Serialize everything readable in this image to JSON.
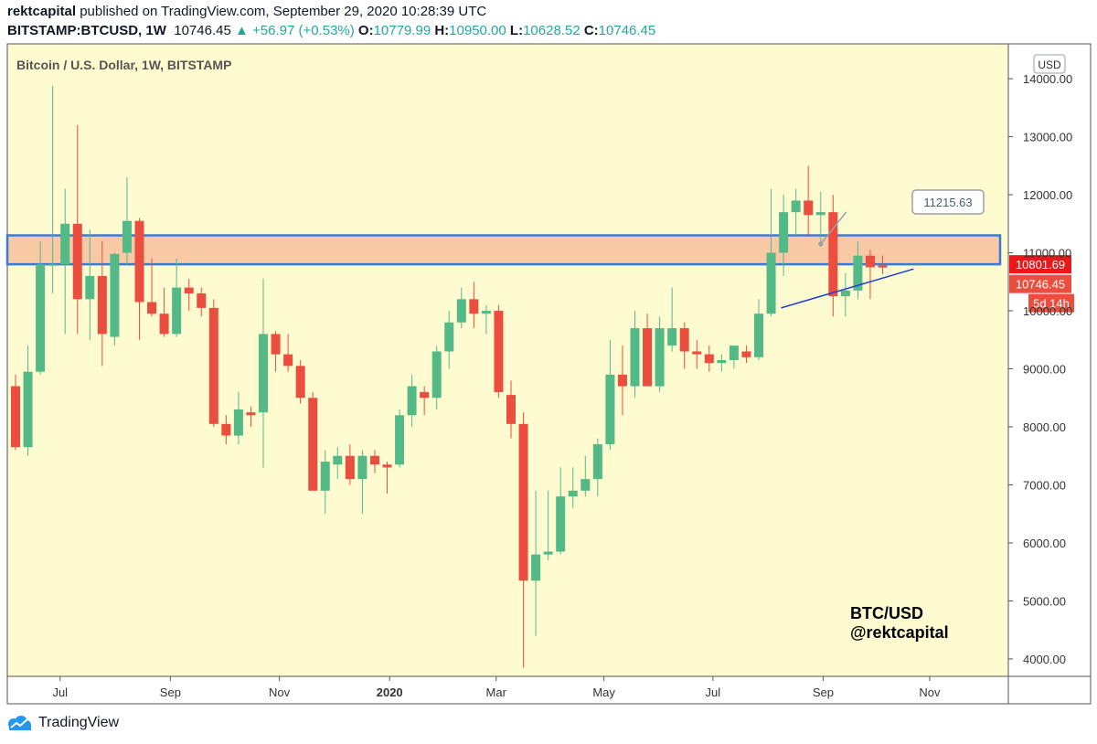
{
  "header": {
    "user": "rektcapital",
    "published_text": "published on TradingView.com, September 29, 2020 10:28:39 UTC",
    "symbol": "BITSTAMP:BTCUSD, 1W",
    "last": "10746.45",
    "change": "▲ +56.97 (+0.53%)",
    "open_label": "O:",
    "open": "10779.99",
    "high_label": "H:",
    "high": "10950.00",
    "low_label": "L:",
    "low": "10628.52",
    "close_label": "C:",
    "close": "10746.45"
  },
  "chart_title": "Bitcoin / U.S. Dollar, 1W, BITSTAMP",
  "currency_button": "USD",
  "annotation_callout": "11215.63",
  "watermark": {
    "line1": "BTC/USD",
    "line2": "@rektcapital"
  },
  "price_badges": {
    "resistance": "10801.69",
    "last": "10746.45",
    "countdown": "5d 14h"
  },
  "footer": {
    "brand": "TradingView"
  },
  "colors": {
    "bull": "#53b987",
    "bear": "#eb4d3e",
    "background": "#fffbd0",
    "zone": "#f9c9a6",
    "zone_border": "#3a7bd5",
    "trendline": "#1f3fd1"
  },
  "chart_data": {
    "type": "candlestick",
    "title": "Bitcoin / U.S. Dollar, 1W, BITSTAMP",
    "interval": "1W",
    "ylim": [
      3700,
      14600
    ],
    "y_ticks": [
      4000,
      5000,
      6000,
      7000,
      8000,
      9000,
      10000,
      11000,
      12000,
      13000,
      14000
    ],
    "y_tick_labels": [
      "4000.00",
      "5000.00",
      "6000.00",
      "7000.00",
      "8000.00",
      "9000.00",
      "10000.00",
      "11000.00",
      "12000.00",
      "13000.00",
      "14000.00"
    ],
    "x_tick_labels": [
      {
        "label": "Jul",
        "index": 3.6
      },
      {
        "label": "Sep",
        "index": 12.5
      },
      {
        "label": "Nov",
        "index": 21.3
      },
      {
        "label": "2020",
        "index": 30.2
      },
      {
        "label": "Mar",
        "index": 38.8
      },
      {
        "label": "May",
        "index": 47.5
      },
      {
        "label": "Jul",
        "index": 56.3
      },
      {
        "label": "Sep",
        "index": 65.2
      },
      {
        "label": "Nov",
        "index": 73.8
      }
    ],
    "resistance_zone": {
      "low": 10801.69,
      "high": 11300,
      "label": "10801.69"
    },
    "callout_value": 11215.63,
    "trendline": {
      "start": {
        "index": 61.8,
        "value": 10050
      },
      "end": {
        "index": 72.5,
        "value": 10720
      }
    },
    "candles": [
      {
        "o": 8700,
        "h": 8900,
        "l": 7600,
        "c": 7650
      },
      {
        "o": 7650,
        "h": 9400,
        "l": 7500,
        "c": 8950
      },
      {
        "o": 8950,
        "h": 11200,
        "l": 8900,
        "c": 10800
      },
      {
        "o": 10800,
        "h": 13880,
        "l": 10300,
        "c": 10800
      },
      {
        "o": 10800,
        "h": 12100,
        "l": 9600,
        "c": 11500
      },
      {
        "o": 11500,
        "h": 13200,
        "l": 9600,
        "c": 10200
      },
      {
        "o": 10200,
        "h": 11400,
        "l": 9500,
        "c": 10600
      },
      {
        "o": 10600,
        "h": 11200,
        "l": 9050,
        "c": 9600
      },
      {
        "o": 9550,
        "h": 11000,
        "l": 9400,
        "c": 10980
      },
      {
        "o": 11000,
        "h": 12300,
        "l": 10800,
        "c": 11550
      },
      {
        "o": 11550,
        "h": 11600,
        "l": 9500,
        "c": 10150
      },
      {
        "o": 10150,
        "h": 10900,
        "l": 9900,
        "c": 9950
      },
      {
        "o": 9950,
        "h": 10400,
        "l": 9550,
        "c": 9600
      },
      {
        "o": 9600,
        "h": 10900,
        "l": 9550,
        "c": 10400
      },
      {
        "o": 10400,
        "h": 10550,
        "l": 10000,
        "c": 10300
      },
      {
        "o": 10300,
        "h": 10400,
        "l": 9900,
        "c": 10050
      },
      {
        "o": 10050,
        "h": 10200,
        "l": 8000,
        "c": 8050
      },
      {
        "o": 8050,
        "h": 8200,
        "l": 7700,
        "c": 7850
      },
      {
        "o": 7850,
        "h": 8600,
        "l": 7700,
        "c": 8300
      },
      {
        "o": 8250,
        "h": 8350,
        "l": 8000,
        "c": 8200
      },
      {
        "o": 8250,
        "h": 10550,
        "l": 7300,
        "c": 9600
      },
      {
        "o": 9600,
        "h": 9650,
        "l": 8950,
        "c": 9250
      },
      {
        "o": 9250,
        "h": 9600,
        "l": 8950,
        "c": 9050
      },
      {
        "o": 9050,
        "h": 9150,
        "l": 8400,
        "c": 8500
      },
      {
        "o": 8500,
        "h": 8600,
        "l": 6900,
        "c": 6900
      },
      {
        "o": 6900,
        "h": 7600,
        "l": 6500,
        "c": 7400
      },
      {
        "o": 7350,
        "h": 7650,
        "l": 7100,
        "c": 7500
      },
      {
        "o": 7500,
        "h": 7700,
        "l": 7000,
        "c": 7100
      },
      {
        "o": 7100,
        "h": 7600,
        "l": 6500,
        "c": 7500
      },
      {
        "o": 7500,
        "h": 7600,
        "l": 7200,
        "c": 7350
      },
      {
        "o": 7350,
        "h": 7400,
        "l": 6850,
        "c": 7300
      },
      {
        "o": 7350,
        "h": 8300,
        "l": 7300,
        "c": 8200
      },
      {
        "o": 8200,
        "h": 8900,
        "l": 8000,
        "c": 8700
      },
      {
        "o": 8600,
        "h": 8700,
        "l": 8200,
        "c": 8500
      },
      {
        "o": 8500,
        "h": 9400,
        "l": 8300,
        "c": 9300
      },
      {
        "o": 9300,
        "h": 10000,
        "l": 9000,
        "c": 9800
      },
      {
        "o": 9800,
        "h": 10400,
        "l": 9700,
        "c": 10200
      },
      {
        "o": 10200,
        "h": 10500,
        "l": 9700,
        "c": 9950
      },
      {
        "o": 9950,
        "h": 10100,
        "l": 9600,
        "c": 10000
      },
      {
        "o": 10000,
        "h": 10100,
        "l": 8500,
        "c": 8600
      },
      {
        "o": 8550,
        "h": 8800,
        "l": 7800,
        "c": 8050
      },
      {
        "o": 8050,
        "h": 8250,
        "l": 3850,
        "c": 5350
      },
      {
        "o": 5350,
        "h": 6900,
        "l": 4400,
        "c": 5800
      },
      {
        "o": 5800,
        "h": 6900,
        "l": 5700,
        "c": 5850
      },
      {
        "o": 5850,
        "h": 7300,
        "l": 5800,
        "c": 6800
      },
      {
        "o": 6800,
        "h": 7300,
        "l": 6600,
        "c": 6900
      },
      {
        "o": 6900,
        "h": 7500,
        "l": 6800,
        "c": 7100
      },
      {
        "o": 7100,
        "h": 7800,
        "l": 6800,
        "c": 7700
      },
      {
        "o": 7700,
        "h": 9500,
        "l": 7600,
        "c": 8900
      },
      {
        "o": 8900,
        "h": 9400,
        "l": 8200,
        "c": 8700
      },
      {
        "o": 8700,
        "h": 10000,
        "l": 8500,
        "c": 9700
      },
      {
        "o": 9700,
        "h": 9950,
        "l": 8700,
        "c": 8700
      },
      {
        "o": 8700,
        "h": 9900,
        "l": 8600,
        "c": 9700
      },
      {
        "o": 9400,
        "h": 10400,
        "l": 9300,
        "c": 9700
      },
      {
        "o": 9700,
        "h": 9800,
        "l": 9000,
        "c": 9300
      },
      {
        "o": 9300,
        "h": 9500,
        "l": 9000,
        "c": 9250
      },
      {
        "o": 9250,
        "h": 9400,
        "l": 8950,
        "c": 9100
      },
      {
        "o": 9100,
        "h": 9250,
        "l": 8950,
        "c": 9150
      },
      {
        "o": 9150,
        "h": 9300,
        "l": 9000,
        "c": 9400
      },
      {
        "o": 9300,
        "h": 9400,
        "l": 9100,
        "c": 9200
      },
      {
        "o": 9200,
        "h": 10200,
        "l": 9150,
        "c": 9950
      },
      {
        "o": 9950,
        "h": 12100,
        "l": 9900,
        "c": 11000
      },
      {
        "o": 11000,
        "h": 12000,
        "l": 10600,
        "c": 11700
      },
      {
        "o": 11700,
        "h": 12100,
        "l": 11300,
        "c": 11900
      },
      {
        "o": 11900,
        "h": 12500,
        "l": 11300,
        "c": 11650
      },
      {
        "o": 11650,
        "h": 12050,
        "l": 11100,
        "c": 11700
      },
      {
        "o": 11700,
        "h": 12000,
        "l": 9900,
        "c": 10250
      },
      {
        "o": 10250,
        "h": 10650,
        "l": 9900,
        "c": 10350
      },
      {
        "o": 10350,
        "h": 11200,
        "l": 10200,
        "c": 10950
      },
      {
        "o": 10950,
        "h": 11050,
        "l": 10200,
        "c": 10750
      },
      {
        "o": 10780,
        "h": 10950,
        "l": 10630,
        "c": 10746
      }
    ]
  }
}
